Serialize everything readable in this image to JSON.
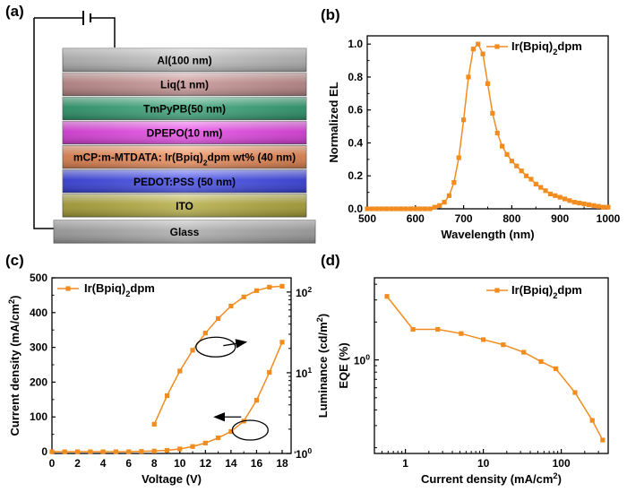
{
  "panels": {
    "a": {
      "label": "(a)",
      "layers": [
        {
          "name": "Al(100 nm)",
          "color": "#bdbdbd"
        },
        {
          "name": "Liq(1 nm)",
          "color": "#c48e8e"
        },
        {
          "name": "TmPyPB(50 nm)",
          "color": "#2f9e72"
        },
        {
          "name": "DPEPO(10 nm)",
          "color": "#e640e6"
        },
        {
          "name": "mCP:m-MTDATA: Ir(Bpiq)₂dpm wt% (40 nm)",
          "color": "#ee8a55"
        },
        {
          "name": "PEDOT:PSS (50 nm)",
          "color": "#3a43e8"
        },
        {
          "name": "ITO",
          "color": "#b0a838"
        },
        {
          "name": "Glass",
          "color": "#a7a7a7"
        }
      ]
    },
    "b": {
      "label": "(b)"
    },
    "c": {
      "label": "(c)"
    },
    "d": {
      "label": "(d)"
    }
  },
  "chart_data": [
    {
      "panel": "b",
      "type": "line",
      "title": "",
      "xlabel": "Wavelength (nm)",
      "ylabel": "Normalized EL",
      "xlim": [
        500,
        1000
      ],
      "ylim": [
        0.0,
        1.05
      ],
      "xticks": [
        500,
        600,
        700,
        800,
        900,
        1000
      ],
      "yticks": [
        0.0,
        0.2,
        0.4,
        0.6,
        0.8,
        1.0
      ],
      "xtick_labels": [
        "500",
        "600",
        "700",
        "800",
        "900",
        "1000"
      ],
      "ytick_labels": [
        "0.0",
        "0.2",
        "0.4",
        "0.6",
        "0.8",
        "1.0"
      ],
      "legend": "top-right",
      "series": [
        {
          "name": "Ir(Bpiq)₂dpm",
          "color": "#f28c1e",
          "x": [
            500,
            510,
            520,
            530,
            540,
            550,
            560,
            570,
            580,
            590,
            600,
            610,
            620,
            630,
            640,
            650,
            660,
            670,
            680,
            690,
            700,
            710,
            720,
            730,
            740,
            750,
            760,
            770,
            780,
            790,
            800,
            810,
            820,
            830,
            840,
            850,
            860,
            870,
            880,
            890,
            900,
            910,
            920,
            930,
            940,
            950,
            960,
            970,
            980,
            990,
            1000
          ],
          "y": [
            0.0,
            0.0,
            0.0,
            0.0,
            0.0,
            0.0,
            0.0,
            0.0,
            0.0,
            0.0,
            0.0,
            0.0,
            0.0,
            0.0,
            0.01,
            0.02,
            0.04,
            0.08,
            0.16,
            0.31,
            0.54,
            0.8,
            0.97,
            1.0,
            0.94,
            0.76,
            0.58,
            0.46,
            0.38,
            0.33,
            0.29,
            0.26,
            0.23,
            0.2,
            0.18,
            0.15,
            0.13,
            0.11,
            0.09,
            0.08,
            0.07,
            0.06,
            0.05,
            0.04,
            0.035,
            0.03,
            0.025,
            0.02,
            0.015,
            0.01,
            0.01
          ]
        }
      ]
    },
    {
      "panel": "c",
      "type": "line",
      "xlabel": "Voltage (V)",
      "ylabel": "Current density (mA/cm²)",
      "ylabel_right": "Luminance (cd/m²)",
      "xlim": [
        0,
        18.7
      ],
      "ylim": [
        -5,
        500
      ],
      "ylim_right_log": [
        1,
        150
      ],
      "xticks": [
        0,
        2,
        4,
        6,
        8,
        10,
        12,
        14,
        16,
        18
      ],
      "xtick_labels": [
        "0",
        "2",
        "4",
        "6",
        "8",
        "10",
        "12",
        "14",
        "16",
        "18"
      ],
      "yticks": [
        0,
        100,
        200,
        300,
        400,
        500
      ],
      "ytick_labels": [
        "0",
        "100",
        "200",
        "300",
        "400",
        "500"
      ],
      "yticks_right": [
        1,
        10,
        100
      ],
      "ytick_labels_right": [
        "10",
        "10",
        "10"
      ],
      "ytick_exponents_right": [
        "0",
        "1",
        "2"
      ],
      "legend": "top-left",
      "series": [
        {
          "name": "Ir(Bpiq)₂dpm",
          "axis": "left",
          "quantity": "Current density",
          "color": "#f28c1e",
          "x": [
            0,
            1,
            2,
            3,
            4,
            5,
            6,
            7,
            8,
            9,
            10,
            11,
            12,
            13,
            14,
            15,
            16,
            17,
            18
          ],
          "y": [
            0,
            0,
            0,
            0,
            0,
            0,
            0,
            1,
            2,
            4,
            8,
            15,
            25,
            40,
            58,
            88,
            148,
            228,
            315
          ]
        },
        {
          "name": "Ir(Bpiq)₂dpm",
          "axis": "right",
          "quantity": "Luminance",
          "color": "#f28c1e",
          "x": [
            8,
            9,
            10,
            11,
            12,
            13,
            14,
            15,
            16,
            17,
            18
          ],
          "y": [
            2.3,
            5.2,
            10.5,
            19,
            31,
            47,
            67,
            87,
            104,
            115,
            118
          ]
        }
      ]
    },
    {
      "panel": "d",
      "type": "line",
      "xlabel": "Current density (mA/cm²)",
      "ylabel": "EQE (%)",
      "xscale": "log",
      "yscale": "log",
      "xlim": [
        0.4,
        400
      ],
      "ylim": [
        0.18,
        4.5
      ],
      "xticks": [
        1,
        10,
        100
      ],
      "xtick_labels": [
        "1",
        "10",
        "100"
      ],
      "yticks": [
        1
      ],
      "ytick_labels": [
        "10"
      ],
      "ytick_exponents": [
        "0"
      ],
      "legend": "top-right",
      "series": [
        {
          "name": "Ir(Bpiq)₂dpm",
          "color": "#f28c1e",
          "x": [
            0.58,
            1.25,
            2.6,
            5.2,
            10,
            18,
            33,
            55,
            85,
            150,
            250,
            340
          ],
          "y": [
            3.2,
            1.75,
            1.75,
            1.62,
            1.45,
            1.32,
            1.15,
            0.97,
            0.85,
            0.55,
            0.33,
            0.23
          ]
        }
      ]
    }
  ]
}
